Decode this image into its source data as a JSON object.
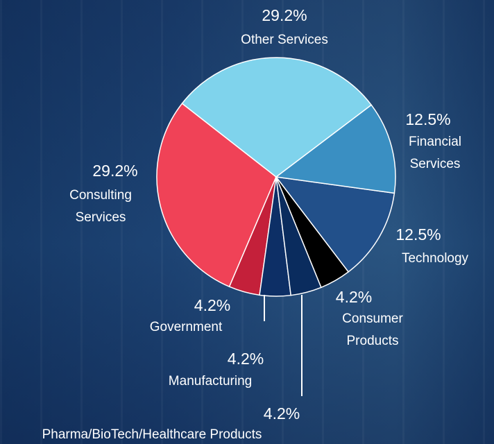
{
  "chart_data": {
    "type": "pie",
    "categories": [
      "Other Services",
      "Financial Services",
      "Technology",
      "Consumer Products",
      "Pharma/BioTech/Healthcare Products",
      "Manufacturing",
      "Government",
      "Consulting Services"
    ],
    "values": [
      29.2,
      12.5,
      12.5,
      4.2,
      4.2,
      4.2,
      4.2,
      29.2
    ],
    "value_labels": [
      "29.2%",
      "12.5%",
      "12.5%",
      "4.2%",
      "4.2%",
      "4.2%",
      "4.2%",
      "29.2%"
    ],
    "colors": [
      "#7fd3ec",
      "#3a8fc2",
      "#22508a",
      "#000000",
      "#0a2c5e",
      "#0d2f66",
      "#c4203a",
      "#f04257"
    ]
  }
}
